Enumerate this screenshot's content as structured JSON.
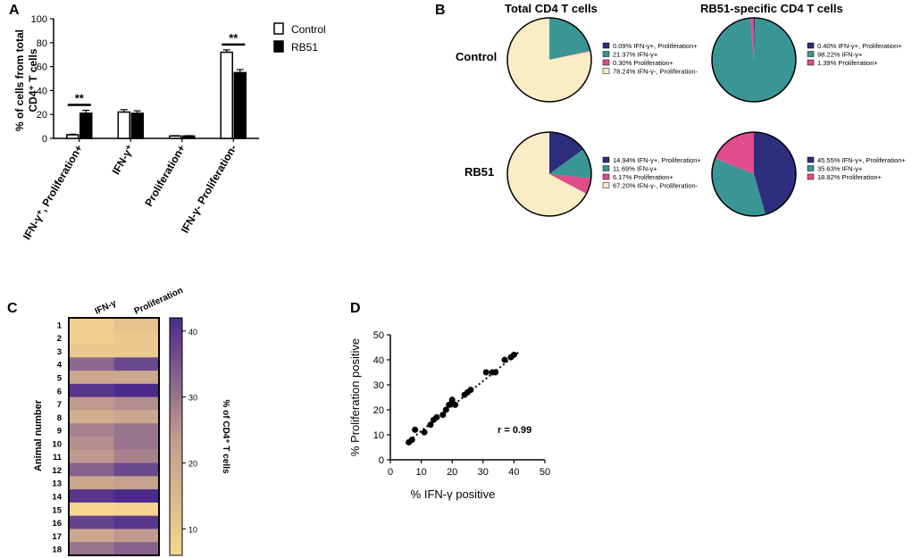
{
  "panels": {
    "A": "A",
    "B": "B",
    "C": "C",
    "D": "D"
  },
  "chart_data": [
    {
      "id": "A",
      "type": "bar",
      "ylabel_line1": "% of cells from total",
      "ylabel_line2": "CD4⁺ T cells",
      "ylim": [
        0,
        100
      ],
      "yticks": [
        0,
        20,
        40,
        60,
        80,
        100
      ],
      "categories": [
        "IFN-γ⁺, Proliferation+",
        "IFN-γ⁺",
        "Proliferation+",
        "IFN-γ- Proliferation-"
      ],
      "series": [
        {
          "name": "Control",
          "fill": "#ffffff",
          "values": [
            3,
            22,
            2,
            72
          ],
          "errors": [
            0.5,
            2,
            0.3,
            2
          ]
        },
        {
          "name": "RB51",
          "fill": "#000000",
          "values": [
            21,
            21,
            2,
            55
          ],
          "errors": [
            2.5,
            2,
            0.3,
            2.5
          ]
        }
      ],
      "significance": [
        {
          "category_index": 0,
          "label": "**"
        },
        {
          "category_index": 3,
          "label": "**"
        }
      ]
    },
    {
      "id": "B",
      "type": "pie",
      "column_titles": [
        "Total CD4 T cells",
        "RB51-specific CD4 T cells"
      ],
      "row_labels": [
        "Control",
        "RB51"
      ],
      "colors": {
        "dual": "#2e2e7e",
        "ifn": "#3a9595",
        "prolif": "#e04c8c",
        "neg": "#faecc4"
      },
      "pies": [
        {
          "row": 0,
          "col": 0,
          "slices": [
            {
              "key": "dual",
              "value": 0.09,
              "label": "0.09%  IFN-γ+, Proliferation+"
            },
            {
              "key": "ifn",
              "value": 21.37,
              "label": "21.37%  IFN-γ+"
            },
            {
              "key": "prolif",
              "value": 0.3,
              "label": "0.30%  Proliferation+"
            },
            {
              "key": "neg",
              "value": 78.24,
              "label": "78.24%  IFN-γ-, Proliferation-"
            }
          ]
        },
        {
          "row": 0,
          "col": 1,
          "slices": [
            {
              "key": "dual",
              "value": 0.4,
              "label": "0.40%  IFN-γ+, Proliferation+"
            },
            {
              "key": "ifn",
              "value": 98.22,
              "label": "98.22%  IFN-γ+"
            },
            {
              "key": "prolif",
              "value": 1.39,
              "label": "1.39%  Proliferation+"
            }
          ]
        },
        {
          "row": 1,
          "col": 0,
          "slices": [
            {
              "key": "dual",
              "value": 14.94,
              "label": "14.94%  IFN-γ+, Proliferation+"
            },
            {
              "key": "ifn",
              "value": 11.69,
              "label": "11.69%  IFN-γ+"
            },
            {
              "key": "prolif",
              "value": 6.17,
              "label": "6.17%  Proliferation+"
            },
            {
              "key": "neg",
              "value": 67.2,
              "label": "67.20%  IFN-γ-, Proliferation-"
            }
          ]
        },
        {
          "row": 1,
          "col": 1,
          "slices": [
            {
              "key": "dual",
              "value": 45.55,
              "label": "45.55%  IFN-γ+, Proliferation+"
            },
            {
              "key": "ifn",
              "value": 35.63,
              "label": "35.63%  IFN-γ+"
            },
            {
              "key": "prolif",
              "value": 18.82,
              "label": "18.82%  Proliferation+"
            }
          ]
        }
      ]
    },
    {
      "id": "C",
      "type": "heatmap",
      "columns": [
        "IFN-γ",
        "Proliferation"
      ],
      "rows": [
        "1",
        "2",
        "3",
        "4",
        "5",
        "6",
        "7",
        "8",
        "9",
        "10",
        "11",
        "12",
        "13",
        "14",
        "15",
        "16",
        "17",
        "18"
      ],
      "ylabel": "Animal number",
      "colorbar_label": "% of CD4⁺ T cells",
      "colorbar_ticks": [
        10,
        20,
        30,
        40
      ],
      "vmin": 6,
      "vmax": 42,
      "color_low": "#f7d68e",
      "color_mid": "#c09a8e",
      "color_high": "#4b2a8c",
      "values": [
        [
          8,
          12
        ],
        [
          8,
          10
        ],
        [
          10,
          10
        ],
        [
          32,
          37
        ],
        [
          20,
          20
        ],
        [
          40,
          42
        ],
        [
          24,
          26
        ],
        [
          18,
          20
        ],
        [
          28,
          30
        ],
        [
          26,
          30
        ],
        [
          24,
          28
        ],
        [
          33,
          37
        ],
        [
          20,
          22
        ],
        [
          40,
          42
        ],
        [
          6,
          7
        ],
        [
          38,
          40
        ],
        [
          20,
          24
        ],
        [
          30,
          33
        ]
      ]
    },
    {
      "id": "D",
      "type": "scatter",
      "xlabel": "% IFN-γ positive",
      "ylabel": "% Proliferation positive",
      "xlim": [
        0,
        50
      ],
      "ylim": [
        0,
        50
      ],
      "xticks": [
        0,
        10,
        20,
        30,
        40,
        50
      ],
      "yticks": [
        0,
        10,
        20,
        30,
        40,
        50
      ],
      "points": [
        [
          6,
          7
        ],
        [
          7,
          8
        ],
        [
          8,
          12
        ],
        [
          11,
          11
        ],
        [
          13,
          14
        ],
        [
          14,
          16
        ],
        [
          15,
          17
        ],
        [
          17,
          18
        ],
        [
          18,
          20
        ],
        [
          19,
          22
        ],
        [
          20,
          23
        ],
        [
          20,
          24
        ],
        [
          21,
          22
        ],
        [
          24,
          26
        ],
        [
          25,
          27
        ],
        [
          26,
          28
        ],
        [
          31,
          35
        ],
        [
          33,
          35
        ],
        [
          34,
          35
        ],
        [
          37,
          40
        ],
        [
          39,
          41
        ],
        [
          40,
          42
        ]
      ],
      "fit": {
        "slope": 1.0,
        "intercept": 1.5
      },
      "annotation": "r = 0.99"
    }
  ]
}
